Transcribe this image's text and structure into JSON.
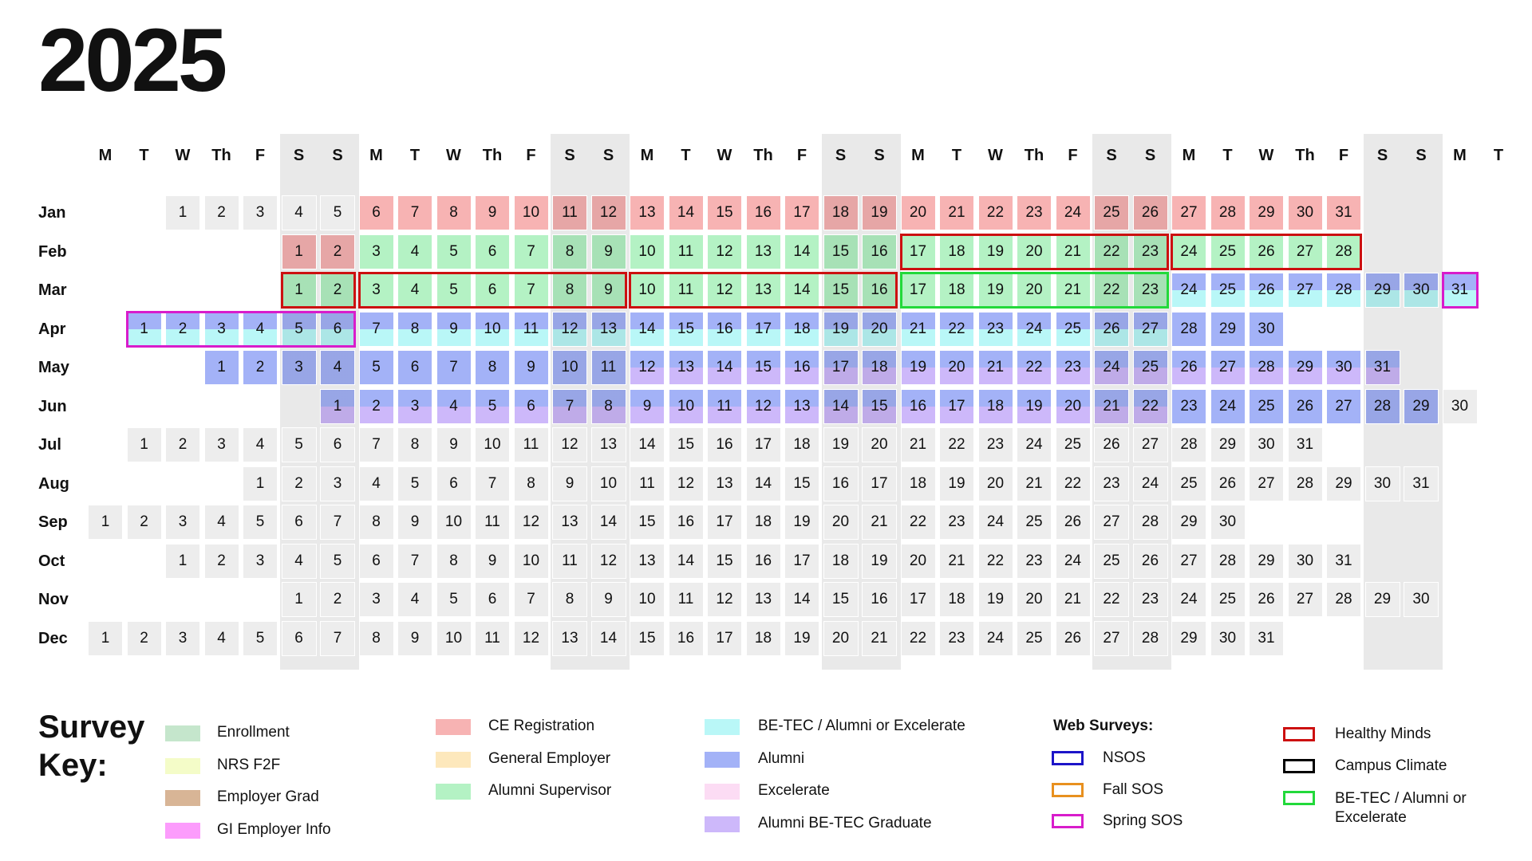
{
  "year": "2025",
  "weekdays": [
    "M",
    "T",
    "W",
    "Th",
    "F",
    "S",
    "S",
    "M",
    "T",
    "W",
    "Th",
    "F",
    "S",
    "S",
    "M",
    "T",
    "W",
    "Th",
    "F",
    "S",
    "S",
    "M",
    "T",
    "W",
    "Th",
    "F",
    "S",
    "S",
    "M",
    "T",
    "W",
    "Th",
    "F",
    "S",
    "S",
    "M",
    "T"
  ],
  "months": [
    {
      "label": "Jan",
      "offset": 2,
      "days": 31
    },
    {
      "label": "Feb",
      "offset": 5,
      "days": 28
    },
    {
      "label": "Mar",
      "offset": 5,
      "days": 31
    },
    {
      "label": "Apr",
      "offset": 1,
      "days": 30
    },
    {
      "label": "May",
      "offset": 3,
      "days": 31
    },
    {
      "label": "Jun",
      "offset": 6,
      "days": 30
    },
    {
      "label": "Jul",
      "offset": 1,
      "days": 31
    },
    {
      "label": "Aug",
      "offset": 4,
      "days": 31
    },
    {
      "label": "Sep",
      "offset": 0,
      "days": 30
    },
    {
      "label": "Oct",
      "offset": 2,
      "days": 31
    },
    {
      "label": "Nov",
      "offset": 5,
      "days": 30
    },
    {
      "label": "Dec",
      "offset": 0,
      "days": 31
    }
  ],
  "colors": {
    "enrollment": "#c5e6cc",
    "nrs_f2f": "#f4fcc8",
    "employer_grad": "#d8b596",
    "gi_employer_info": "#fc9cfc",
    "ce_registration": "#f7b3b3",
    "general_employer": "#fde8bc",
    "alumni_supervisor": "#b4f2c4",
    "betec_alumni_excelerate": "#b9f7f7",
    "alumni": "#a3b2f7",
    "excelerate": "#fcdcf4",
    "alumni_betec_graduate": "#cdb8fa",
    "nsos": "#1c14c8",
    "fall_sos": "#e8901f",
    "spring_sos": "#d81ccb",
    "healthy_minds": "#cc1010",
    "campus_climate": "#000000",
    "betec_web": "#22d93a"
  },
  "fills": [
    {
      "m": 0,
      "from": 6,
      "to": 31,
      "top": "ce_registration"
    },
    {
      "m": 1,
      "from": 1,
      "to": 2,
      "top": "ce_registration"
    },
    {
      "m": 1,
      "from": 3,
      "to": 28,
      "top": "alumni_supervisor"
    },
    {
      "m": 2,
      "from": 1,
      "to": 23,
      "top": "alumni_supervisor"
    },
    {
      "m": 2,
      "from": 24,
      "to": 31,
      "top": "alumni",
      "bottom": "betec_alumni_excelerate"
    },
    {
      "m": 3,
      "from": 1,
      "to": 27,
      "top": "alumni",
      "bottom": "betec_alumni_excelerate"
    },
    {
      "m": 3,
      "from": 28,
      "to": 30,
      "top": "alumni"
    },
    {
      "m": 4,
      "from": 1,
      "to": 11,
      "top": "alumni"
    },
    {
      "m": 4,
      "from": 12,
      "to": 31,
      "top": "alumni",
      "bottom": "alumni_betec_graduate"
    },
    {
      "m": 5,
      "from": 1,
      "to": 22,
      "top": "alumni",
      "bottom": "alumni_betec_graduate"
    },
    {
      "m": 5,
      "from": 23,
      "to": 29,
      "top": "alumni"
    }
  ],
  "outlines": [
    {
      "m": 1,
      "from": 17,
      "to": 23,
      "color": "healthy_minds"
    },
    {
      "m": 1,
      "from": 24,
      "to": 28,
      "color": "healthy_minds"
    },
    {
      "m": 2,
      "from": 1,
      "to": 2,
      "color": "healthy_minds"
    },
    {
      "m": 2,
      "from": 3,
      "to": 9,
      "color": "healthy_minds"
    },
    {
      "m": 2,
      "from": 10,
      "to": 16,
      "color": "healthy_minds"
    },
    {
      "m": 2,
      "from": 17,
      "to": 23,
      "color": "betec_web"
    },
    {
      "m": 2,
      "from": 31,
      "to": 31,
      "color": "spring_sos"
    },
    {
      "m": 3,
      "from": 1,
      "to": 6,
      "color": "spring_sos"
    }
  ],
  "legend": {
    "title": "Survey Key:",
    "col1": [
      {
        "label": "Enrollment",
        "color": "enrollment"
      },
      {
        "label": "NRS F2F",
        "color": "nrs_f2f"
      },
      {
        "label": "Employer Grad",
        "color": "employer_grad"
      },
      {
        "label": "GI Employer Info",
        "color": "gi_employer_info"
      }
    ],
    "col2": [
      {
        "label": "CE Registration",
        "color": "ce_registration"
      },
      {
        "label": "General Employer",
        "color": "general_employer"
      },
      {
        "label": "Alumni Supervisor",
        "color": "alumni_supervisor"
      }
    ],
    "col3": [
      {
        "label": "BE-TEC / Alumni or Excelerate",
        "color": "betec_alumni_excelerate"
      },
      {
        "label": "Alumni",
        "color": "alumni"
      },
      {
        "label": "Excelerate",
        "color": "excelerate"
      },
      {
        "label": "Alumni BE-TEC Graduate",
        "color": "alumni_betec_graduate"
      }
    ],
    "web_title": "Web Surveys:",
    "web": [
      {
        "label": "NSOS",
        "color": "nsos"
      },
      {
        "label": "Fall SOS",
        "color": "fall_sos"
      },
      {
        "label": "Spring SOS",
        "color": "spring_sos"
      }
    ],
    "web2": [
      {
        "label": "Healthy Minds",
        "color": "healthy_minds"
      },
      {
        "label": "Campus Climate",
        "color": "campus_climate"
      },
      {
        "label": "BE-TEC / Alumni or Excelerate",
        "color": "betec_web"
      }
    ]
  }
}
